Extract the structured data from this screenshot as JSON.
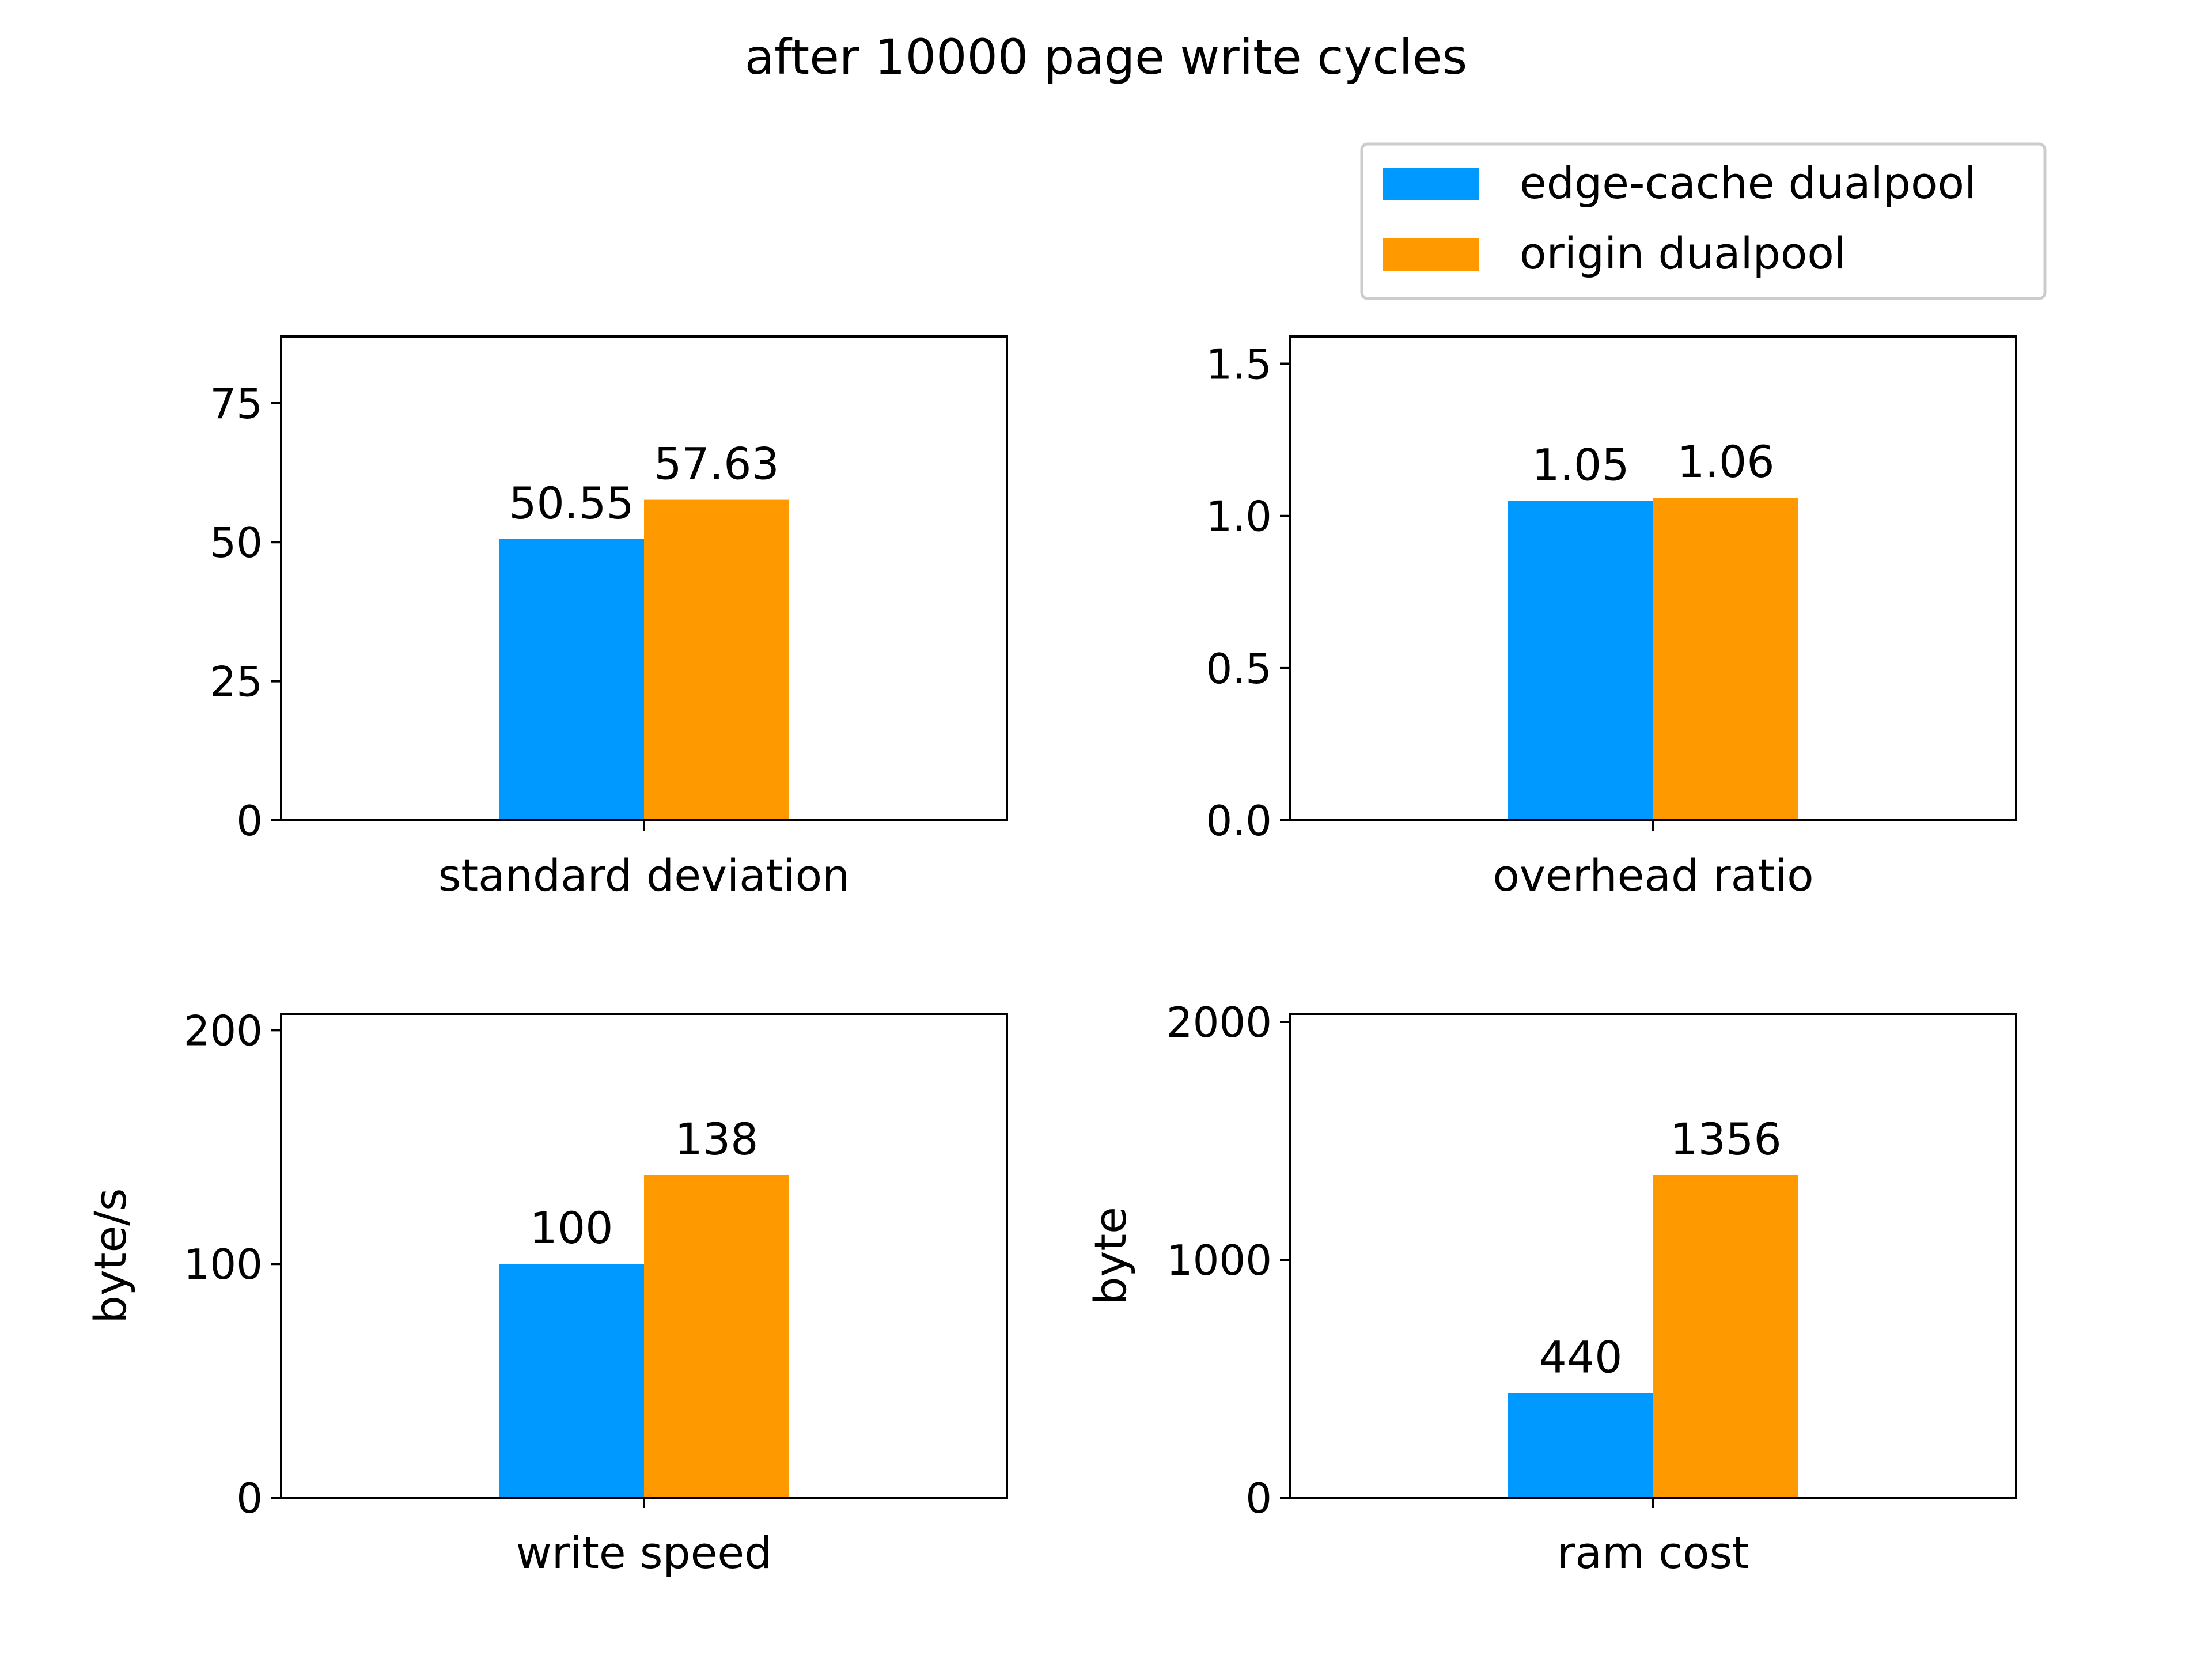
{
  "figure": {
    "title": "after 10000 page write cycles"
  },
  "legend": {
    "items": [
      {
        "label": "edge-cache dualpool",
        "color": "#0099ff"
      },
      {
        "label": "origin dualpool",
        "color": "#ff9900"
      }
    ]
  },
  "chart_data": [
    {
      "type": "bar",
      "categories": [
        "standard deviation"
      ],
      "series": [
        {
          "name": "edge-cache dualpool",
          "values": [
            50.55
          ],
          "label": "50.55"
        },
        {
          "name": "origin dualpool",
          "values": [
            57.63
          ],
          "label": "57.63"
        }
      ],
      "xlabel": "",
      "ylabel": "",
      "ylim": [
        0,
        87
      ],
      "yticks": [
        0,
        25,
        50,
        75
      ],
      "ytick_labels": [
        "0",
        "25",
        "50",
        "75"
      ]
    },
    {
      "type": "bar",
      "categories": [
        "overhead ratio"
      ],
      "series": [
        {
          "name": "edge-cache dualpool",
          "values": [
            1.05
          ],
          "label": "1.05"
        },
        {
          "name": "origin dualpool",
          "values": [
            1.06
          ],
          "label": "1.06"
        }
      ],
      "xlabel": "",
      "ylabel": "",
      "ylim": [
        0,
        1.59
      ],
      "yticks": [
        0,
        0.5,
        1.0,
        1.5
      ],
      "ytick_labels": [
        "0.0",
        "0.5",
        "1.0",
        "1.5"
      ]
    },
    {
      "type": "bar",
      "categories": [
        "write speed"
      ],
      "series": [
        {
          "name": "edge-cache dualpool",
          "values": [
            100
          ],
          "label": "100"
        },
        {
          "name": "origin dualpool",
          "values": [
            138
          ],
          "label": "138"
        }
      ],
      "xlabel": "",
      "ylabel": "byte/s",
      "ylim": [
        0,
        207
      ],
      "yticks": [
        0,
        100,
        200
      ],
      "ytick_labels": [
        "0",
        "100",
        "200"
      ]
    },
    {
      "type": "bar",
      "categories": [
        "ram cost"
      ],
      "series": [
        {
          "name": "edge-cache dualpool",
          "values": [
            440
          ],
          "label": "440"
        },
        {
          "name": "origin dualpool",
          "values": [
            1356
          ],
          "label": "1356"
        }
      ],
      "xlabel": "",
      "ylabel": "byte",
      "ylim": [
        0,
        2034
      ],
      "yticks": [
        0,
        1000,
        2000
      ],
      "ytick_labels": [
        "0",
        "1000",
        "2000"
      ]
    }
  ]
}
